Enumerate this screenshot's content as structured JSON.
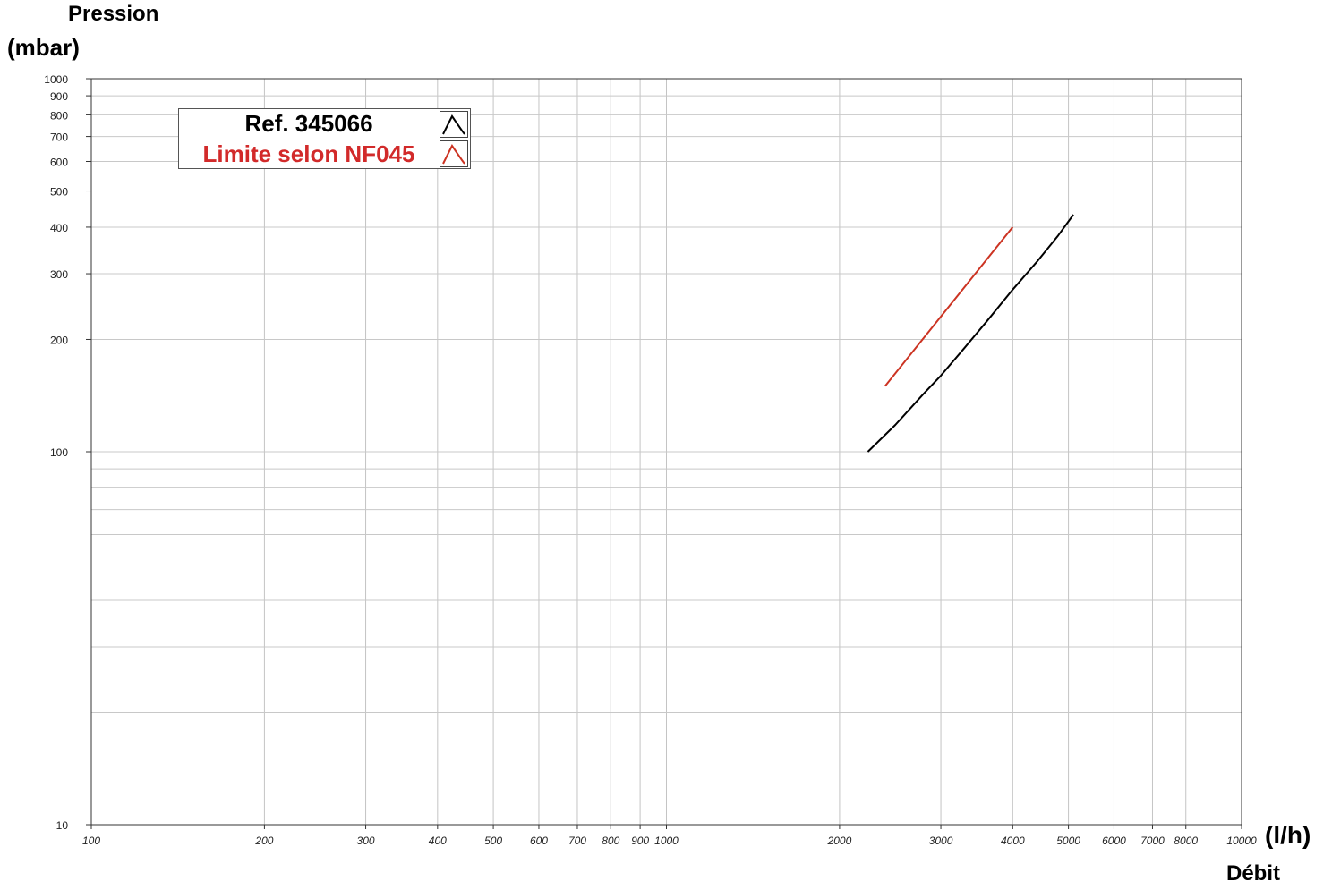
{
  "chart_data": {
    "type": "line",
    "title": "",
    "ylabel": "Pression",
    "yunit": "(mbar)",
    "xlabel": "Débit",
    "xunit": "(l/h)",
    "xscale": "log",
    "yscale": "log",
    "xlim": [
      100,
      10000
    ],
    "ylim": [
      10,
      1000
    ],
    "grid": true,
    "legend_position": "top-left",
    "x_ticks": [
      100,
      200,
      300,
      400,
      500,
      600,
      700,
      800,
      900,
      1000,
      2000,
      3000,
      4000,
      5000,
      6000,
      7000,
      8000,
      10000
    ],
    "x_tick_labels": [
      "100",
      "200",
      "300",
      "400",
      "500",
      "600",
      "700",
      "800",
      "900",
      "1000",
      "2000",
      "3000",
      "4000",
      "5000",
      "6000",
      "7000",
      "8000",
      "10000"
    ],
    "y_ticks": [
      10,
      100,
      200,
      300,
      400,
      500,
      600,
      700,
      800,
      900,
      1000
    ],
    "y_tick_labels": [
      "10",
      "100",
      "200",
      "300",
      "400",
      "500",
      "600",
      "700",
      "800",
      "900",
      "1000"
    ],
    "series": [
      {
        "name": "Ref. 345066",
        "color": "#000000",
        "x": [
          2240,
          2500,
          2800,
          3000,
          3300,
          3600,
          4000,
          4400,
          4800,
          5100
        ],
        "y": [
          100,
          118,
          143,
          160,
          190,
          223,
          272,
          322,
          380,
          432
        ]
      },
      {
        "name": "Limite selon NF045",
        "color": "#cc3322",
        "x": [
          2400,
          4000
        ],
        "y": [
          150,
          400
        ]
      }
    ]
  }
}
